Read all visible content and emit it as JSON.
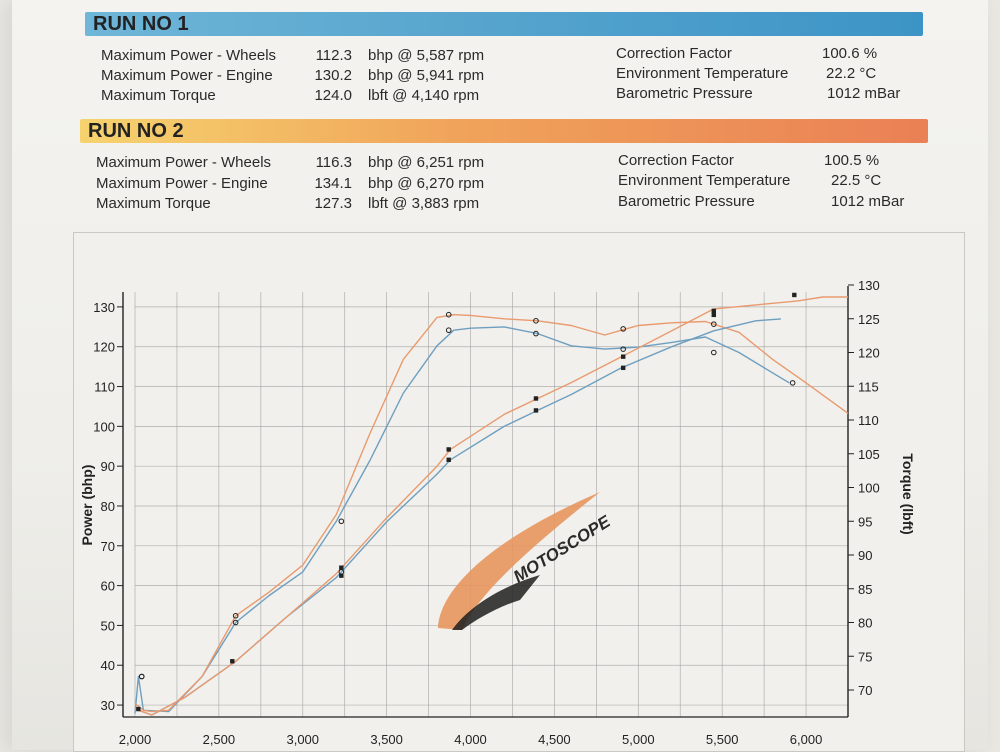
{
  "runs": [
    {
      "title": "RUN NO 1",
      "metrics": [
        {
          "label": "Maximum Power - Wheels",
          "value": "112.3",
          "unit": "bhp @ 5,587 rpm"
        },
        {
          "label": "Maximum Power - Engine",
          "value": "130.2",
          "unit": "bhp @ 5,941 rpm"
        },
        {
          "label": "Maximum Torque",
          "value": "124.0",
          "unit": "lbft @ 4,140 rpm"
        }
      ],
      "conditions": [
        {
          "label": "Correction Factor",
          "value": "100.6 %"
        },
        {
          "label": "Environment Temperature",
          "value": "22.2 °C"
        },
        {
          "label": "Barometric Pressure",
          "value": "1012 mBar"
        }
      ]
    },
    {
      "title": "RUN NO 2",
      "metrics": [
        {
          "label": "Maximum Power - Wheels",
          "value": "116.3",
          "unit": "bhp @ 6,251 rpm"
        },
        {
          "label": "Maximum Power - Engine",
          "value": "134.1",
          "unit": "bhp @ 6,270 rpm"
        },
        {
          "label": "Maximum Torque",
          "value": "127.3",
          "unit": "lbft @ 3,883 rpm"
        }
      ],
      "conditions": [
        {
          "label": "Correction Factor",
          "value": "100.5 %"
        },
        {
          "label": "Environment Temperature",
          "value": "22.5 °C"
        },
        {
          "label": "Barometric Pressure",
          "value": "1012 mBar"
        }
      ]
    }
  ],
  "logo_text": "MOTOSCOPE",
  "colors": {
    "run1_bar": "#4a9fcc",
    "run2_bar": "#ee9258",
    "run1_line": "#6e9fc0",
    "run2_line": "#e99a6e",
    "grid": "#9a9a9a"
  },
  "chart_data": {
    "type": "line",
    "xlabel": "",
    "ylabel": "Power (bhp)",
    "y2label": "Torque (lbft)",
    "xlim": [
      2000,
      6250
    ],
    "ylim": [
      27,
      135
    ],
    "y2lim": [
      66,
      130
    ],
    "x_ticks": [
      2000,
      2500,
      3000,
      3500,
      4000,
      4500,
      5000,
      5500,
      6000
    ],
    "x_tick_labels": [
      "2,000",
      "2,500",
      "3,000",
      "3,500",
      "4,000",
      "4,500",
      "5,000",
      "5,500",
      "6,000"
    ],
    "y_ticks": [
      30,
      40,
      50,
      60,
      70,
      80,
      90,
      100,
      110,
      120,
      130
    ],
    "y2_ticks": [
      70,
      75,
      80,
      85,
      90,
      95,
      100,
      105,
      110,
      115,
      120,
      125,
      130
    ],
    "grid": true,
    "series": [
      {
        "axis": "torque",
        "run": 1,
        "x": [
          2000,
          2020,
          2050,
          2200,
          2400,
          2600,
          2800,
          3000,
          3200,
          3400,
          3600,
          3800,
          3900,
          4000,
          4200,
          4400,
          4600,
          4800,
          5000,
          5200,
          5400,
          5600,
          5800,
          5900
        ],
        "y": [
          66.5,
          72,
          67,
          66.8,
          72,
          80,
          84,
          87.5,
          95,
          104,
          114,
          121,
          123.3,
          123.6,
          123.8,
          122.8,
          121,
          120.5,
          120.8,
          121.5,
          122.3,
          120,
          117,
          115.5
        ]
      },
      {
        "axis": "torque",
        "run": 2,
        "x": [
          2000,
          2050,
          2100,
          2200,
          2400,
          2600,
          2800,
          3000,
          3200,
          3400,
          3600,
          3800,
          3900,
          4000,
          4200,
          4400,
          4600,
          4800,
          5000,
          5200,
          5400,
          5600,
          5800,
          6000,
          6250
        ],
        "y": [
          68,
          67,
          66.8,
          67,
          72,
          81,
          84.5,
          88.5,
          96,
          108,
          119,
          125.2,
          125.6,
          125.5,
          125,
          124.7,
          124,
          122.6,
          124,
          124.4,
          124.6,
          123,
          119,
          115.5,
          111
        ]
      },
      {
        "axis": "power",
        "run": 1,
        "x": [
          2000,
          2100,
          2300,
          2600,
          2900,
          3200,
          3500,
          3800,
          3880,
          4200,
          4400,
          4600,
          4900,
          5200,
          5450,
          5700,
          5850
        ],
        "y": [
          29,
          27.5,
          32,
          41,
          52,
          62,
          76,
          88,
          91.6,
          100,
          104,
          108,
          114.7,
          120,
          124,
          126.5,
          127
        ]
      },
      {
        "axis": "power",
        "run": 2,
        "x": [
          2000,
          2100,
          2300,
          2600,
          2900,
          3200,
          3500,
          3800,
          3880,
          4200,
          4400,
          4600,
          4900,
          5200,
          5450,
          5700,
          5950,
          6100,
          6250
        ],
        "y": [
          29,
          27.5,
          32,
          41,
          52,
          63,
          77,
          90,
          94.2,
          103,
          107,
          111,
          117.5,
          124,
          129.5,
          130.5,
          131.5,
          132.5,
          132.5
        ]
      }
    ],
    "markers": [
      {
        "axis": "torque",
        "run": 1,
        "shape": "circle",
        "x": [
          2040,
          2600,
          3230,
          3870,
          4390,
          4910,
          5450,
          5920
        ],
        "y": [
          72,
          80,
          87.5,
          123.3,
          122.8,
          120.5,
          120,
          115.5
        ]
      },
      {
        "axis": "torque",
        "run": 2,
        "shape": "circle",
        "x": [
          2040,
          2600,
          3230,
          3870,
          4390,
          4910,
          5450
        ],
        "y": [
          72,
          81,
          95,
          125.6,
          124.7,
          123.5,
          124.2
        ]
      },
      {
        "axis": "power",
        "run": 1,
        "shape": "square",
        "x": [
          2020,
          2580,
          3230,
          3870,
          4390,
          4910,
          5450
        ],
        "y": [
          29,
          41,
          62.5,
          91.6,
          104,
          114.7,
          128
        ]
      },
      {
        "axis": "power",
        "run": 2,
        "shape": "square",
        "x": [
          3230,
          3870,
          4390,
          4910,
          5450,
          5930
        ],
        "y": [
          64.5,
          94.2,
          107,
          117.5,
          129,
          133
        ]
      }
    ]
  }
}
